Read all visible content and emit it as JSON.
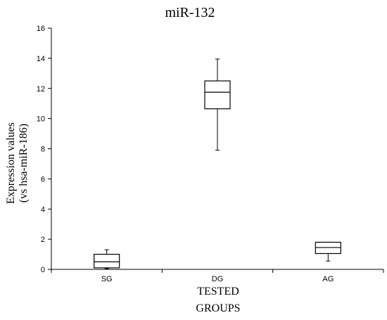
{
  "chart_data": {
    "type": "box",
    "title": "miR-132",
    "ylabel_lines": [
      "Expression values",
      "(vs hsa-miR-186)"
    ],
    "xlabel_lines": [
      "TESTED",
      "GROUPS"
    ],
    "categories": [
      "SG",
      "DG",
      "AG"
    ],
    "ylim": [
      0,
      16
    ],
    "yticks": [
      0,
      2,
      4,
      6,
      8,
      10,
      12,
      14,
      16
    ],
    "grid": false,
    "boxes": [
      {
        "name": "SG",
        "min": 0.05,
        "q1": 0.1,
        "median": 0.5,
        "q3": 1.0,
        "max": 1.3
      },
      {
        "name": "DG",
        "min": 7.9,
        "q1": 10.65,
        "median": 11.75,
        "q3": 12.5,
        "max": 13.95
      },
      {
        "name": "AG",
        "min": 0.55,
        "q1": 1.05,
        "median": 1.45,
        "q3": 1.8,
        "max": 1.8
      }
    ]
  }
}
